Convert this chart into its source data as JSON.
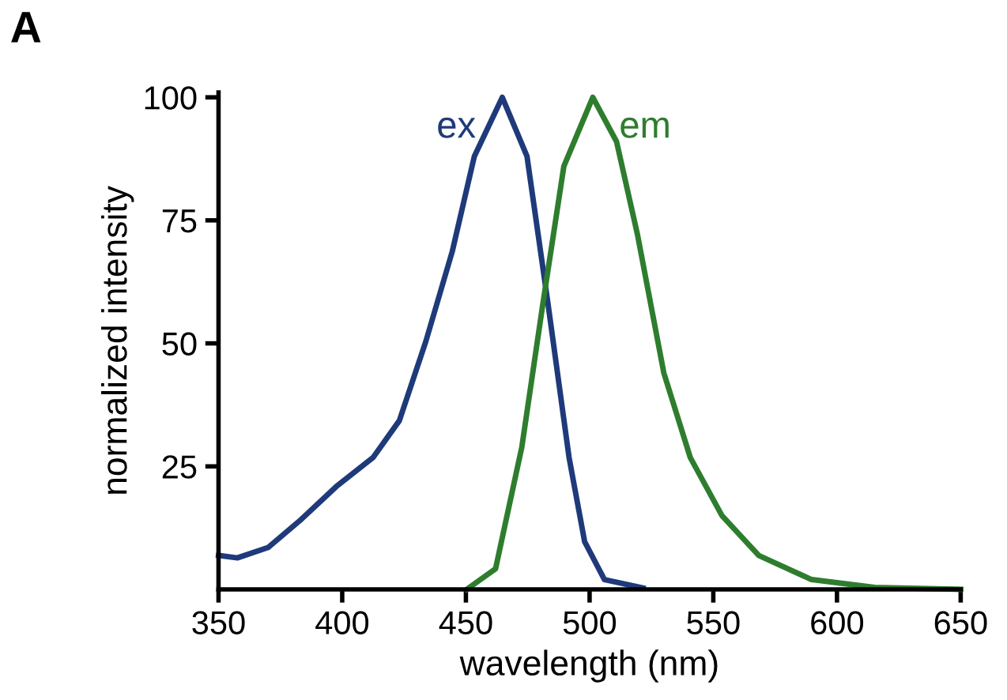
{
  "chart_data": {
    "type": "line",
    "xlabel": "wavelength (nm)",
    "ylabel": "normalized intensity",
    "annotations": [
      "A"
    ],
    "xlim": [
      350,
      650
    ],
    "xticks": [
      350,
      400,
      450,
      500,
      550,
      600,
      650
    ],
    "ylim": [
      0,
      101
    ],
    "yticks": [
      25,
      50,
      75,
      100
    ],
    "grid": false,
    "legend": false,
    "marker": "none",
    "line_style": "solid",
    "series": [
      {
        "name": "ex",
        "color": "#1f3a7a",
        "x": [
          350,
          357.6,
          370,
          382.7,
          397.6,
          412.5,
          423.1,
          433.8,
          444.5,
          453.4,
          464.7,
          474.7,
          483.2,
          491.7,
          498,
          506,
          521.6
        ],
        "values": [
          6.9,
          6.4,
          8.5,
          13.9,
          20.9,
          26.8,
          34.3,
          50.4,
          68.7,
          88,
          100,
          88,
          58,
          26.8,
          9.7,
          2,
          0.3
        ]
      },
      {
        "name": "em",
        "color": "#2e7d2e",
        "x": [
          450.3,
          462,
          472.6,
          481.1,
          489.6,
          501.3,
          510.9,
          519.4,
          530,
          540.7,
          553.5,
          568.4,
          589.7,
          615.2,
          650
        ],
        "values": [
          0,
          4.2,
          28.9,
          58,
          86,
          100,
          91,
          72,
          44,
          26.8,
          15,
          6.9,
          2,
          0.4,
          0
        ]
      }
    ]
  }
}
